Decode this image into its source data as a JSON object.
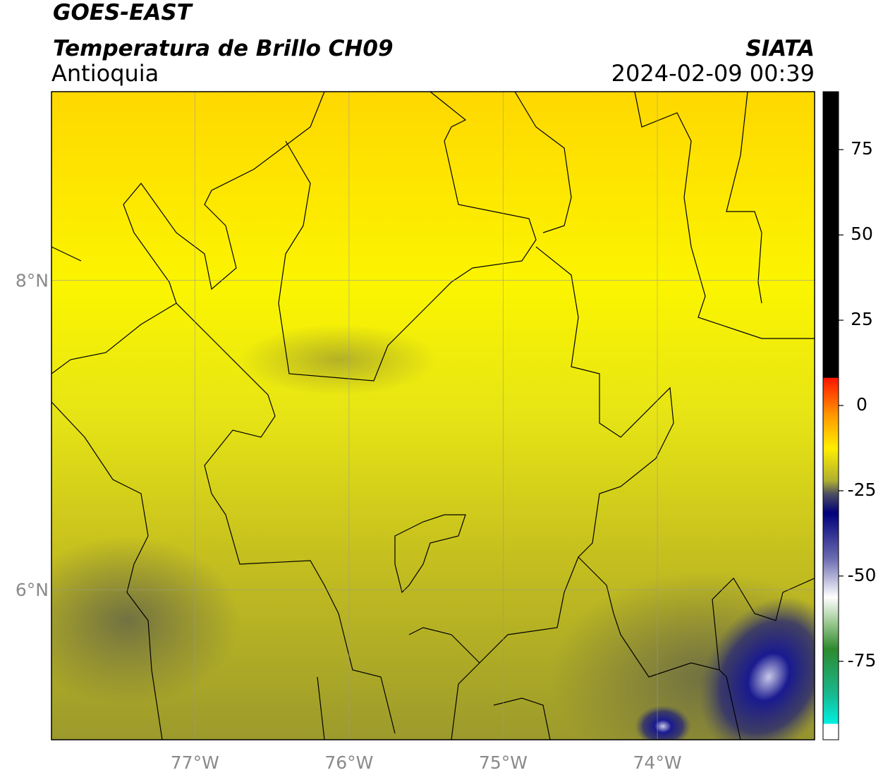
{
  "header": {
    "title": "GOES-EAST",
    "subtitle": "Temperatura de Brillo CH09",
    "region": "Antioquia",
    "source": "SIATA",
    "datetime": "2024-02-09 00:39"
  },
  "map": {
    "xlim": [
      -77.93,
      -72.98
    ],
    "ylim": [
      5.03,
      9.22
    ],
    "xticks": [
      {
        "value": -77,
        "label": "77°W"
      },
      {
        "value": -76,
        "label": "76°W"
      },
      {
        "value": -75,
        "label": "75°W"
      },
      {
        "value": -74,
        "label": "74°W"
      }
    ],
    "yticks": [
      {
        "value": 8,
        "label": "8°N"
      },
      {
        "value": 6,
        "label": "6°N"
      }
    ],
    "grid": true
  },
  "colorbar": {
    "lim": [
      -98,
      92
    ],
    "ticks": [
      75,
      50,
      25,
      0,
      -25,
      -50,
      -75
    ]
  }
}
